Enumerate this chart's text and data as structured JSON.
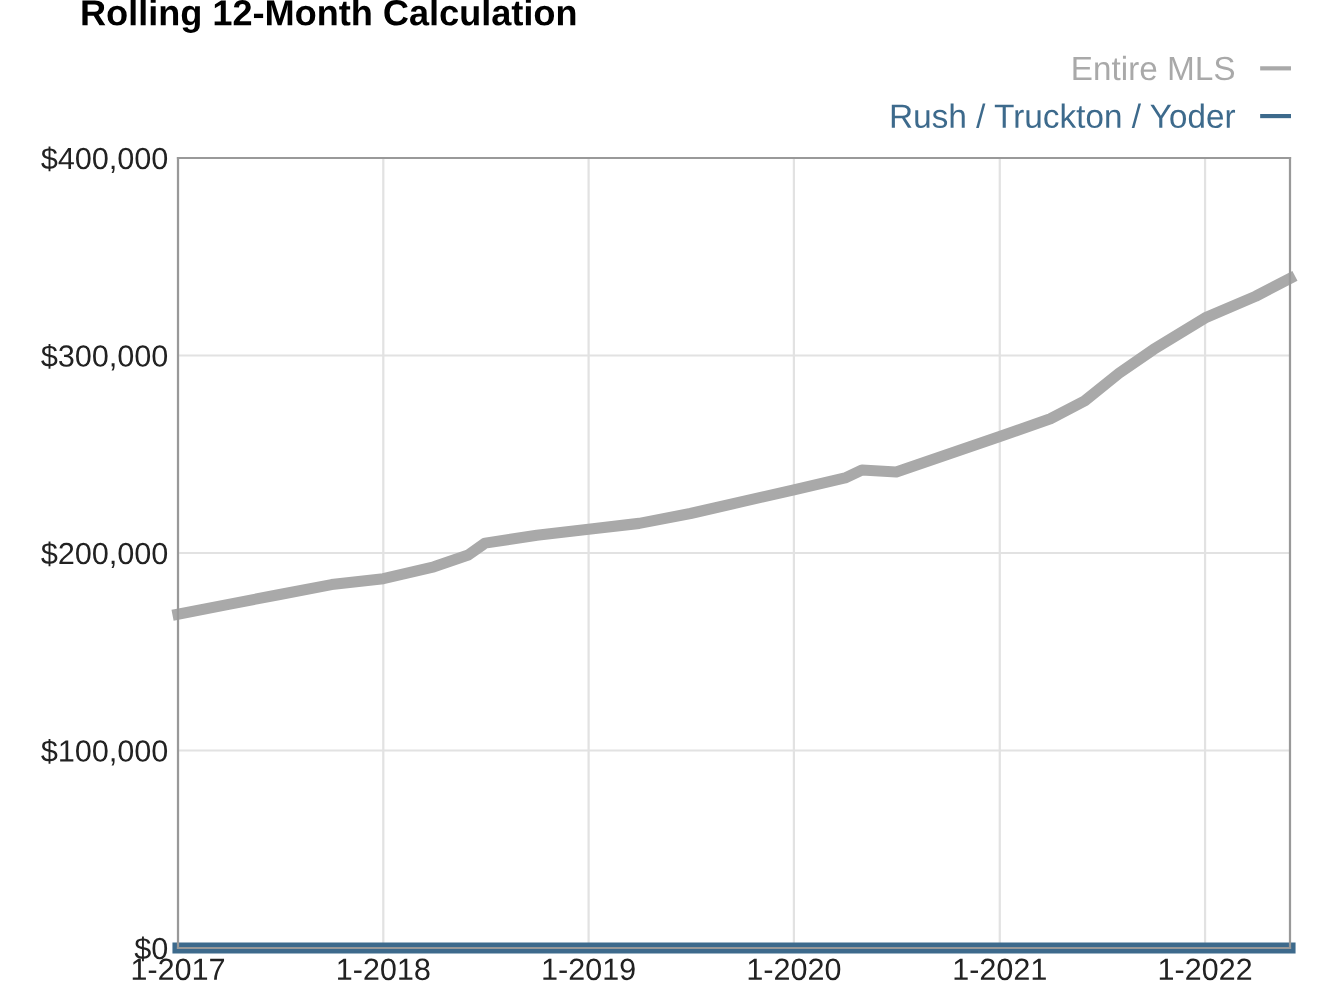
{
  "chart_data": {
    "type": "line",
    "title": "Rolling 12-Month Calculation",
    "series": [
      {
        "name": "Entire MLS",
        "color": "#a9a9a9",
        "x": [
          "2017-01",
          "2017-04",
          "2017-07",
          "2017-10",
          "2018-01",
          "2018-04",
          "2018-06",
          "2018-07",
          "2018-10",
          "2019-01",
          "2019-04",
          "2019-07",
          "2019-10",
          "2020-01",
          "2020-04",
          "2020-05",
          "2020-07",
          "2020-10",
          "2021-01",
          "2021-04",
          "2021-06",
          "2021-08",
          "2021-10",
          "2022-01",
          "2022-04",
          "2022-06"
        ],
        "values": [
          169000,
          174000,
          179000,
          184000,
          187000,
          193000,
          199000,
          205000,
          209000,
          212000,
          215000,
          220000,
          226000,
          232000,
          238000,
          242000,
          241000,
          250000,
          259000,
          268000,
          277000,
          291000,
          303000,
          319000,
          330000,
          339000
        ]
      },
      {
        "name": "Rush / Truckton / Yoder",
        "color": "#3d6a8c",
        "x": [
          "2017-01",
          "2018-01",
          "2019-01",
          "2020-01",
          "2021-01",
          "2022-01",
          "2022-06"
        ],
        "values": [
          0,
          0,
          0,
          0,
          0,
          0,
          0
        ]
      }
    ],
    "xlim": [
      "2017-01",
      "2022-06"
    ],
    "xticks": [
      {
        "value": "2017-01",
        "label": "1-2017"
      },
      {
        "value": "2018-01",
        "label": "1-2018"
      },
      {
        "value": "2019-01",
        "label": "1-2019"
      },
      {
        "value": "2020-01",
        "label": "1-2020"
      },
      {
        "value": "2021-01",
        "label": "1-2021"
      },
      {
        "value": "2022-01",
        "label": "1-2022"
      }
    ],
    "ylim": [
      0,
      400000
    ],
    "yticks": [
      {
        "value": 0,
        "label": "$0"
      },
      {
        "value": 100000,
        "label": "$100,000"
      },
      {
        "value": 200000,
        "label": "$200,000"
      },
      {
        "value": 300000,
        "label": "$300,000"
      },
      {
        "value": 400000,
        "label": "$400,000"
      }
    ],
    "grid": true,
    "legend": "top right",
    "line_style": "solid",
    "marker": "none"
  }
}
